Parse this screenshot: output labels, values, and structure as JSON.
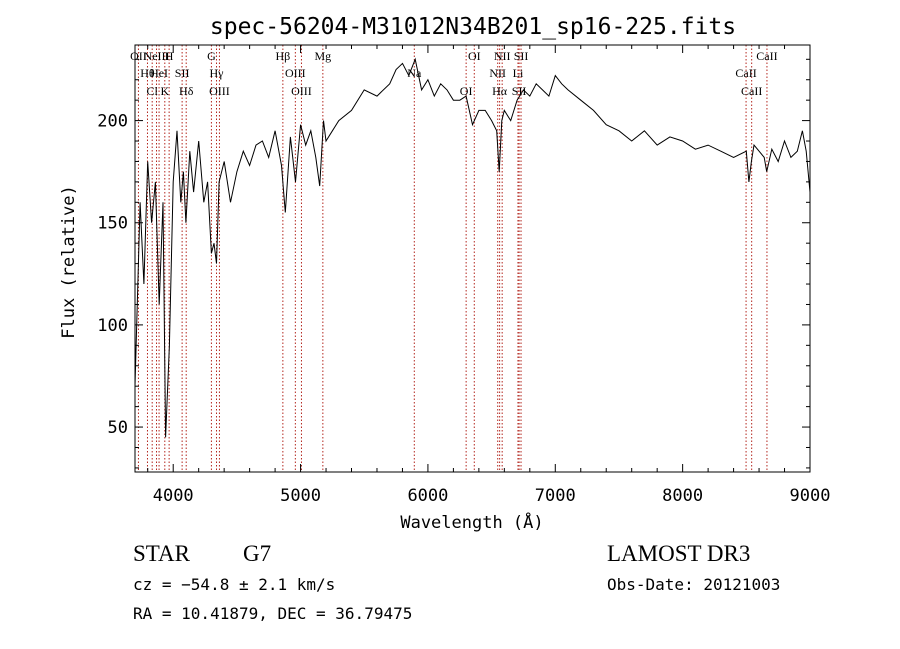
{
  "chart_data": {
    "type": "line",
    "title": "spec-56204-M31012N34B201_sp16-225.fits",
    "xlabel": "Wavelength (Å)",
    "ylabel": "Flux (relative)",
    "xlim": [
      3700,
      9000
    ],
    "ylim": [
      28,
      237
    ],
    "grid": false,
    "legend": "none",
    "xticks": [
      4000,
      5000,
      6000,
      7000,
      8000,
      9000
    ],
    "yticks": [
      50,
      100,
      150,
      200
    ],
    "series": [
      {
        "name": "flux",
        "x": [
          3700,
          3740,
          3770,
          3800,
          3830,
          3860,
          3890,
          3920,
          3940,
          3970,
          4000,
          4030,
          4060,
          4080,
          4100,
          4130,
          4160,
          4200,
          4240,
          4270,
          4300,
          4320,
          4340,
          4360,
          4400,
          4450,
          4500,
          4550,
          4600,
          4650,
          4700,
          4750,
          4800,
          4850,
          4880,
          4920,
          4960,
          5000,
          5040,
          5080,
          5120,
          5150,
          5180,
          5200,
          5250,
          5300,
          5400,
          5500,
          5600,
          5700,
          5750,
          5800,
          5850,
          5900,
          5950,
          6000,
          6050,
          6100,
          6150,
          6200,
          6250,
          6300,
          6350,
          6400,
          6450,
          6500,
          6540,
          6560,
          6580,
          6600,
          6650,
          6700,
          6750,
          6800,
          6850,
          6900,
          6950,
          7000,
          7050,
          7100,
          7200,
          7300,
          7400,
          7500,
          7600,
          7700,
          7800,
          7900,
          8000,
          8100,
          8200,
          8300,
          8400,
          8500,
          8520,
          8540,
          8560,
          8600,
          8640,
          8660,
          8700,
          8750,
          8800,
          8850,
          8900,
          8940,
          8970,
          9000
        ],
        "values": [
          70,
          160,
          120,
          180,
          150,
          170,
          110,
          160,
          45,
          90,
          170,
          195,
          160,
          175,
          150,
          185,
          165,
          190,
          160,
          170,
          135,
          140,
          130,
          170,
          180,
          160,
          175,
          185,
          178,
          188,
          190,
          182,
          195,
          178,
          155,
          192,
          170,
          198,
          188,
          195,
          182,
          168,
          200,
          190,
          195,
          200,
          205,
          215,
          212,
          218,
          225,
          228,
          222,
          230,
          215,
          220,
          212,
          218,
          215,
          210,
          210,
          212,
          198,
          205,
          205,
          200,
          195,
          175,
          200,
          205,
          200,
          210,
          215,
          212,
          218,
          215,
          212,
          222,
          218,
          215,
          210,
          205,
          198,
          195,
          190,
          195,
          188,
          192,
          190,
          186,
          188,
          185,
          182,
          185,
          170,
          180,
          188,
          185,
          182,
          175,
          186,
          180,
          190,
          182,
          185,
          195,
          185,
          165
        ]
      }
    ],
    "line_markers": [
      {
        "x": 3727,
        "labels": [
          "OII"
        ]
      },
      {
        "x": 3798,
        "labels": [
          "Hθ"
        ]
      },
      {
        "x": 3835,
        "labels": [
          "Cl"
        ]
      },
      {
        "x": 3869,
        "labels": [
          "NeIII"
        ]
      },
      {
        "x": 3889,
        "labels": [
          "HeI"
        ]
      },
      {
        "x": 3934,
        "labels": [
          "K"
        ]
      },
      {
        "x": 3968,
        "labels": [
          "H"
        ]
      },
      {
        "x": 4070,
        "labels": [
          "SII"
        ]
      },
      {
        "x": 4102,
        "labels": [
          "Hδ"
        ]
      },
      {
        "x": 4300,
        "labels": [
          "G"
        ]
      },
      {
        "x": 4340,
        "labels": [
          "Hγ"
        ]
      },
      {
        "x": 4363,
        "labels": [
          "OIII"
        ]
      },
      {
        "x": 4861,
        "labels": [
          "Hβ"
        ]
      },
      {
        "x": 4959,
        "labels": [
          "OIII"
        ]
      },
      {
        "x": 5007,
        "labels": [
          "OIII"
        ]
      },
      {
        "x": 5175,
        "labels": [
          "Mg"
        ]
      },
      {
        "x": 5893,
        "labels": [
          "Na"
        ]
      },
      {
        "x": 6300,
        "labels": [
          "OI"
        ]
      },
      {
        "x": 6364,
        "labels": [
          "OI"
        ]
      },
      {
        "x": 6548,
        "labels": [
          "NII"
        ]
      },
      {
        "x": 6563,
        "labels": [
          "Hα"
        ]
      },
      {
        "x": 6583,
        "labels": [
          "NII"
        ]
      },
      {
        "x": 6707,
        "labels": [
          "Li"
        ]
      },
      {
        "x": 6716,
        "labels": [
          "SII"
        ]
      },
      {
        "x": 6731,
        "labels": [
          "SII"
        ]
      },
      {
        "x": 8498,
        "labels": [
          "CaII"
        ]
      },
      {
        "x": 8542,
        "labels": [
          "CaII"
        ]
      },
      {
        "x": 8662,
        "labels": [
          "CaII"
        ]
      }
    ]
  },
  "info": {
    "class_label": "STAR",
    "subclass": "G7",
    "redshift_line": "cz = −54.8 ± 2.1 km/s",
    "coords_line": "RA =  10.41879, DEC =  36.79475",
    "survey": "LAMOST DR3",
    "obs_date": "Obs-Date: 20121003"
  },
  "colors": {
    "line": "#000000",
    "marker": "#b3261e",
    "axis": "#000000"
  }
}
